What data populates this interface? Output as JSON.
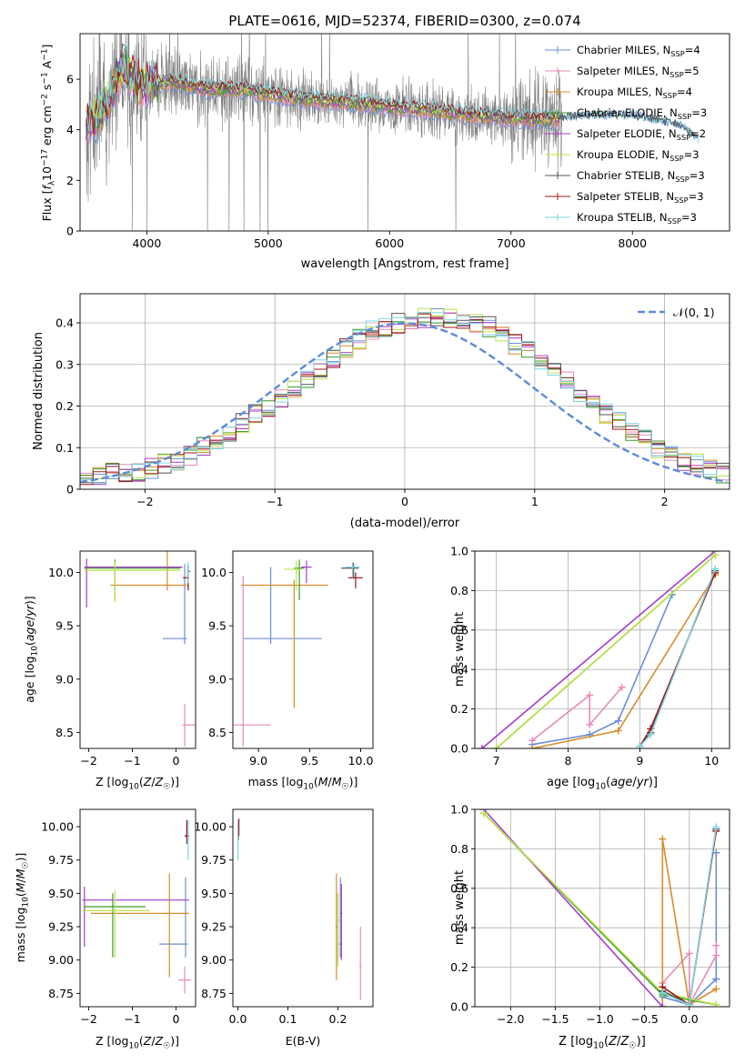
{
  "colors": {
    "Chabrier MILES": "#6b8fd6",
    "Salpeter MILES": "#e889b8",
    "Kroupa MILES": "#d98c2b",
    "Chabrier ELODIE": "#3a9a2f",
    "Salpeter ELODIE": "#a63cc8",
    "Kroupa ELODIE": "#bde34a",
    "Chabrier STELIB": "#555555",
    "Salpeter STELIB": "#a01818",
    "Kroupa STELIB": "#7fd6e0",
    "data": "#808080",
    "normal": "#5b8bd9"
  },
  "chart_data": [
    {
      "id": "spectrum",
      "type": "line",
      "title": "PLATE=0616, MJD=52374, FIBERID=0300, z=0.074",
      "xlabel": "wavelength [Angstrom, rest frame]",
      "ylabel": "Flux [f_λ 10^-17 erg cm^-2 s^-1 A^-1]",
      "xlim": [
        3450,
        8800
      ],
      "ylim": [
        0,
        7.8
      ],
      "xticks": [
        4000,
        5000,
        6000,
        7000,
        8000
      ],
      "yticks": [
        0,
        2,
        4,
        6
      ],
      "model_continuum": {
        "x": [
          3500,
          3600,
          3700,
          3800,
          3900,
          4000,
          4200,
          4500,
          4800,
          5000,
          5300,
          5600,
          6000,
          6300,
          6600,
          6900,
          7200,
          7400
        ],
        "y": [
          4.2,
          4.6,
          5.4,
          6.6,
          5.9,
          5.8,
          5.9,
          5.6,
          5.6,
          5.4,
          5.2,
          5.1,
          4.9,
          4.8,
          4.6,
          4.5,
          4.4,
          4.4
        ]
      },
      "model_extension": {
        "x": [
          7400,
          7700,
          8000,
          8200,
          8400,
          8550
        ],
        "y": [
          4.5,
          4.6,
          4.6,
          4.4,
          4.2,
          3.6
        ]
      },
      "legend": [
        "Chabrier MILES, N_SSP=4",
        "Salpeter MILES, N_SSP=5",
        "Kroupa MILES, N_SSP=4",
        "Chabrier ELODIE, N_SSP=3",
        "Salpeter ELODIE, N_SSP=2",
        "Kroupa ELODIE, N_SSP=3",
        "Chabrier STELIB, N_SSP=3",
        "Salpeter STELIB, N_SSP=3",
        "Kroupa STELIB, N_SSP=3"
      ],
      "legend_placement": "right"
    },
    {
      "id": "residuals",
      "type": "histogram",
      "xlabel": "(data-model)/error",
      "ylabel": "Normed distribution",
      "xlim": [
        -2.5,
        2.5
      ],
      "ylim": [
        0,
        0.47
      ],
      "xticks": [
        -2,
        -1,
        0,
        1,
        2
      ],
      "yticks": [
        0.0,
        0.1,
        0.2,
        0.3,
        0.4
      ],
      "grid": true,
      "legend": [
        "𝒩(0, 1)"
      ],
      "legend_placement": "top-right",
      "bin_width": 0.1,
      "reference_histogram": [
        0.03,
        0.03,
        0.04,
        0.04,
        0.04,
        0.05,
        0.06,
        0.07,
        0.08,
        0.1,
        0.12,
        0.14,
        0.16,
        0.18,
        0.2,
        0.22,
        0.24,
        0.26,
        0.29,
        0.31,
        0.34,
        0.36,
        0.38,
        0.39,
        0.4,
        0.41,
        0.41,
        0.41,
        0.41,
        0.4,
        0.4,
        0.39,
        0.37,
        0.35,
        0.33,
        0.31,
        0.28,
        0.26,
        0.23,
        0.21,
        0.18,
        0.16,
        0.14,
        0.12,
        0.1,
        0.08,
        0.07,
        0.06,
        0.05,
        0.04
      ]
    },
    {
      "id": "age_vs_Z",
      "type": "errorbar",
      "xlabel": "Z [log10(Z/Z☉)]",
      "ylabel": "age [log10(age/yr)]",
      "xlim": [
        -2.2,
        0.45
      ],
      "ylim": [
        8.35,
        10.2
      ],
      "xticks": [
        -2,
        -1,
        0
      ],
      "yticks": [
        8.5,
        9.0,
        9.5,
        10.0
      ],
      "points": [
        {
          "series": "Chabrier MILES",
          "x": 0.2,
          "xerr": [
            0.5,
            0.05
          ],
          "y": 9.38,
          "yerr": [
            0.05,
            0.7
          ]
        },
        {
          "series": "Salpeter MILES",
          "x": 0.2,
          "xerr": [
            0.05,
            0.25
          ],
          "y": 8.57,
          "yerr": [
            0.2,
            0.2
          ]
        },
        {
          "series": "Kroupa MILES",
          "x": -0.2,
          "xerr": [
            1.3,
            0.45
          ],
          "y": 9.88,
          "yerr": [
            0.05,
            1.15
          ]
        },
        {
          "series": "Chabrier ELODIE",
          "x": -1.4,
          "xerr": [
            0.7,
            1.5
          ],
          "y": 10.04,
          "yerr": [
            0.3,
            0.08
          ]
        },
        {
          "series": "Salpeter ELODIE",
          "x": -2.05,
          "xerr": [
            0.05,
            2.2
          ],
          "y": 10.05,
          "yerr": [
            0.38,
            0.08
          ]
        },
        {
          "series": "Kroupa ELODIE",
          "x": -1.4,
          "xerr": [
            0.7,
            1.5
          ],
          "y": 10.02,
          "yerr": [
            0.3,
            0.08
          ]
        },
        {
          "series": "Chabrier STELIB",
          "x": 0.28,
          "xerr": [
            0.02,
            0.05
          ],
          "y": 10.01,
          "yerr": [
            0.15,
            0.05
          ]
        },
        {
          "series": "Salpeter STELIB",
          "x": 0.28,
          "xerr": [
            0.12,
            0.02
          ],
          "y": 9.95,
          "yerr": [
            0.12,
            0.12
          ]
        },
        {
          "series": "Kroupa STELIB",
          "x": 0.28,
          "xerr": [
            0.03,
            0.03
          ],
          "y": 10.05,
          "yerr": [
            0.15,
            0.05
          ]
        }
      ]
    },
    {
      "id": "age_vs_mass",
      "type": "errorbar",
      "xlabel": "mass [log10(M/M☉)]",
      "ylabel": "",
      "xlim": [
        8.75,
        10.12
      ],
      "ylim": [
        8.35,
        10.2
      ],
      "xticks": [
        9.0,
        9.5,
        10.0
      ],
      "yticks": [
        8.5,
        9.0,
        9.5,
        10.0
      ],
      "points": [
        {
          "series": "Chabrier MILES",
          "x": 9.12,
          "xerr": [
            0.27,
            0.5
          ],
          "y": 9.38,
          "yerr": [
            0.05,
            0.67
          ]
        },
        {
          "series": "Salpeter MILES",
          "x": 8.85,
          "xerr": [
            0.27,
            0.27
          ],
          "y": 8.57,
          "yerr": [
            0.2,
            1.4
          ]
        },
        {
          "series": "Kroupa MILES",
          "x": 9.35,
          "xerr": [
            0.52,
            0.33
          ],
          "y": 9.88,
          "yerr": [
            1.15,
            0.05
          ]
        },
        {
          "series": "Chabrier ELODIE",
          "x": 9.4,
          "xerr": [
            0.05,
            0.05
          ],
          "y": 10.04,
          "yerr": [
            0.3,
            0.08
          ]
        },
        {
          "series": "Salpeter ELODIE",
          "x": 9.47,
          "xerr": [
            0.05,
            0.05
          ],
          "y": 10.05,
          "yerr": [
            0.15,
            0.06
          ]
        },
        {
          "series": "Kroupa ELODIE",
          "x": 9.37,
          "xerr": [
            0.12,
            0.05
          ],
          "y": 10.03,
          "yerr": [
            0.2,
            0.08
          ]
        },
        {
          "series": "Chabrier STELIB",
          "x": 9.93,
          "xerr": [
            0.12,
            0.05
          ],
          "y": 10.04,
          "yerr": [
            0.1,
            0.05
          ]
        },
        {
          "series": "Salpeter STELIB",
          "x": 9.95,
          "xerr": [
            0.07,
            0.07
          ],
          "y": 9.95,
          "yerr": [
            0.1,
            0.05
          ]
        },
        {
          "series": "Kroupa STELIB",
          "x": 9.92,
          "xerr": [
            0.07,
            0.07
          ],
          "y": 10.05,
          "yerr": [
            0.1,
            0.05
          ]
        }
      ]
    },
    {
      "id": "mass_weight_vs_age",
      "type": "line",
      "xlabel": "age [log10(age/yr)]",
      "ylabel": "mass weight",
      "xlim": [
        6.7,
        10.25
      ],
      "ylim": [
        0,
        1
      ],
      "xticks": [
        7,
        8,
        9,
        10
      ],
      "yticks": [
        0.0,
        0.2,
        0.4,
        0.6,
        0.8,
        1.0
      ],
      "grid": true,
      "series": [
        {
          "name": "Chabrier MILES",
          "x": [
            7.5,
            8.3,
            8.7,
            9.45
          ],
          "y": [
            0.02,
            0.07,
            0.14,
            0.78
          ]
        },
        {
          "name": "Salpeter MILES",
          "x": [
            7.5,
            8.3,
            8.3,
            8.75
          ],
          "y": [
            0.04,
            0.27,
            0.12,
            0.31
          ]
        },
        {
          "name": "Kroupa MILES",
          "x": [
            7.5,
            8.7,
            10.05
          ],
          "y": [
            0.0,
            0.09,
            0.88
          ]
        },
        {
          "name": "Chabrier ELODIE",
          "x": [
            7.0,
            10.05
          ],
          "y": [
            0.0,
            0.98
          ]
        },
        {
          "name": "Salpeter ELODIE",
          "x": [
            6.8,
            10.05
          ],
          "y": [
            0.0,
            1.0
          ]
        },
        {
          "name": "Kroupa ELODIE",
          "x": [
            7.0,
            10.05
          ],
          "y": [
            0.0,
            0.98
          ]
        },
        {
          "name": "Chabrier STELIB",
          "x": [
            9.0,
            9.15,
            10.05
          ],
          "y": [
            0.01,
            0.08,
            0.9
          ]
        },
        {
          "name": "Salpeter STELIB",
          "x": [
            9.0,
            9.15,
            10.05
          ],
          "y": [
            0.01,
            0.1,
            0.89
          ]
        },
        {
          "name": "Kroupa STELIB",
          "x": [
            9.0,
            9.15,
            10.05
          ],
          "y": [
            0.01,
            0.07,
            0.91
          ]
        }
      ]
    },
    {
      "id": "mass_vs_Z",
      "type": "errorbar",
      "xlabel": "Z [log10(Z/Z☉)]",
      "ylabel": "mass [log10(M/M☉)]",
      "xlim": [
        -2.2,
        0.45
      ],
      "ylim": [
        8.65,
        10.13
      ],
      "xticks": [
        -2,
        -1,
        0
      ],
      "yticks": [
        8.75,
        9.0,
        9.25,
        9.5,
        9.75,
        10.0
      ],
      "points": [
        {
          "series": "Chabrier MILES",
          "x": 0.22,
          "xerr": [
            0.6,
            0.05
          ],
          "y": 9.12,
          "yerr": [
            0.1,
            0.5
          ]
        },
        {
          "series": "Salpeter MILES",
          "x": 0.2,
          "xerr": [
            0.15,
            0.15
          ],
          "y": 8.85,
          "yerr": [
            0.1,
            0.1
          ]
        },
        {
          "series": "Kroupa MILES",
          "x": -0.15,
          "xerr": [
            1.8,
            0.45
          ],
          "y": 9.35,
          "yerr": [
            0.48,
            0.3
          ]
        },
        {
          "series": "Chabrier ELODIE",
          "x": -1.45,
          "xerr": [
            0.65,
            0.75
          ],
          "y": 9.4,
          "yerr": [
            0.38,
            0.1
          ]
        },
        {
          "series": "Salpeter ELODIE",
          "x": -2.1,
          "xerr": [
            0.05,
            2.4
          ],
          "y": 9.45,
          "yerr": [
            0.35,
            0.1
          ]
        },
        {
          "series": "Kroupa ELODIE",
          "x": -1.4,
          "xerr": [
            0.75,
            0.8
          ],
          "y": 9.37,
          "yerr": [
            0.35,
            0.15
          ]
        },
        {
          "series": "Chabrier STELIB",
          "x": 0.25,
          "xerr": [
            0.05,
            0.05
          ],
          "y": 9.93,
          "yerr": [
            0.06,
            0.1
          ]
        },
        {
          "series": "Salpeter STELIB",
          "x": 0.25,
          "xerr": [
            0.05,
            0.05
          ],
          "y": 9.93,
          "yerr": [
            0.05,
            0.12
          ]
        },
        {
          "series": "Kroupa STELIB",
          "x": 0.28,
          "xerr": [
            0.03,
            0.03
          ],
          "y": 9.9,
          "yerr": [
            0.15,
            0.15
          ]
        }
      ]
    },
    {
      "id": "mass_vs_ebv",
      "type": "errorbar",
      "xlabel": "E(B-V)",
      "ylabel": "",
      "xlim": [
        -0.01,
        0.27
      ],
      "ylim": [
        8.65,
        10.13
      ],
      "xticks": [
        0.0,
        0.1,
        0.2
      ],
      "yticks": [
        8.75,
        9.0,
        9.25,
        9.5,
        9.75,
        10.0
      ],
      "points": [
        {
          "series": "Chabrier MILES",
          "x": 0.205,
          "xerr": [
            0.003,
            0.003
          ],
          "y": 9.12,
          "yerr": [
            0.1,
            0.5
          ]
        },
        {
          "series": "Salpeter MILES",
          "x": 0.245,
          "xerr": [
            0.002,
            0.002
          ],
          "y": 8.95,
          "yerr": [
            0.25,
            0.3
          ]
        },
        {
          "series": "Kroupa MILES",
          "x": 0.197,
          "xerr": [
            0.002,
            0.002
          ],
          "y": 9.25,
          "yerr": [
            0.4,
            0.4
          ]
        },
        {
          "series": "Chabrier ELODIE",
          "x": 0.2,
          "xerr": [
            0.002,
            0.002
          ],
          "y": 9.3,
          "yerr": [
            0.3,
            0.2
          ]
        },
        {
          "series": "Salpeter ELODIE",
          "x": 0.207,
          "xerr": [
            0.002,
            0.002
          ],
          "y": 9.35,
          "yerr": [
            0.35,
            0.22
          ]
        },
        {
          "series": "Kroupa ELODIE",
          "x": 0.2,
          "xerr": [
            0.003,
            0.003
          ],
          "y": 9.3,
          "yerr": [
            0.35,
            0.2
          ]
        },
        {
          "series": "Chabrier STELIB",
          "x": 0.001,
          "xerr": [
            0.001,
            0.001
          ],
          "y": 9.95,
          "yerr": [
            0.05,
            0.1
          ]
        },
        {
          "series": "Salpeter STELIB",
          "x": 0.002,
          "xerr": [
            0.001,
            0.001
          ],
          "y": 9.98,
          "yerr": [
            0.05,
            0.08
          ]
        },
        {
          "series": "Kroupa STELIB",
          "x": 0.0,
          "xerr": [
            0.001,
            0.001
          ],
          "y": 9.9,
          "yerr": [
            0.15,
            0.15
          ]
        }
      ]
    },
    {
      "id": "mass_weight_vs_Z",
      "type": "line",
      "xlabel": "Z [log10(Z/Z☉)]",
      "ylabel": "mass weight",
      "xlim": [
        -2.4,
        0.45
      ],
      "ylim": [
        0,
        1
      ],
      "xticks": [
        -2.0,
        -1.5,
        -1.0,
        -0.5,
        0.0
      ],
      "yticks": [
        0.0,
        0.2,
        0.4,
        0.6,
        0.8,
        1.0
      ],
      "grid": true,
      "series": [
        {
          "name": "Chabrier MILES",
          "x": [
            -0.3,
            0.0,
            0.3,
            0.3,
            0.3
          ],
          "y": [
            0.05,
            0.01,
            0.14,
            0.78,
            0.14
          ]
        },
        {
          "name": "Salpeter MILES",
          "x": [
            -0.3,
            0.0,
            0.0,
            0.3,
            0.3
          ],
          "y": [
            0.12,
            0.27,
            0.01,
            0.26,
            0.31
          ]
        },
        {
          "name": "Kroupa MILES",
          "x": [
            -0.3,
            -0.3,
            0.0,
            0.3
          ],
          "y": [
            0.0,
            0.85,
            0.01,
            0.09
          ]
        },
        {
          "name": "Chabrier ELODIE",
          "x": [
            -2.3,
            -0.3,
            0.3
          ],
          "y": [
            0.98,
            0.06,
            0.01
          ]
        },
        {
          "name": "Salpeter ELODIE",
          "x": [
            -2.3,
            -0.3
          ],
          "y": [
            1.0,
            0.0
          ]
        },
        {
          "name": "Kroupa ELODIE",
          "x": [
            -2.3,
            -0.3,
            0.3
          ],
          "y": [
            0.98,
            0.07,
            0.01
          ]
        },
        {
          "name": "Chabrier STELIB",
          "x": [
            -0.3,
            0.0,
            0.3
          ],
          "y": [
            0.08,
            0.01,
            0.9
          ]
        },
        {
          "name": "Salpeter STELIB",
          "x": [
            -0.3,
            0.0,
            0.3
          ],
          "y": [
            0.1,
            0.01,
            0.89
          ]
        },
        {
          "name": "Kroupa STELIB",
          "x": [
            -0.3,
            0.0,
            0.3
          ],
          "y": [
            0.07,
            0.01,
            0.91
          ]
        }
      ]
    }
  ]
}
